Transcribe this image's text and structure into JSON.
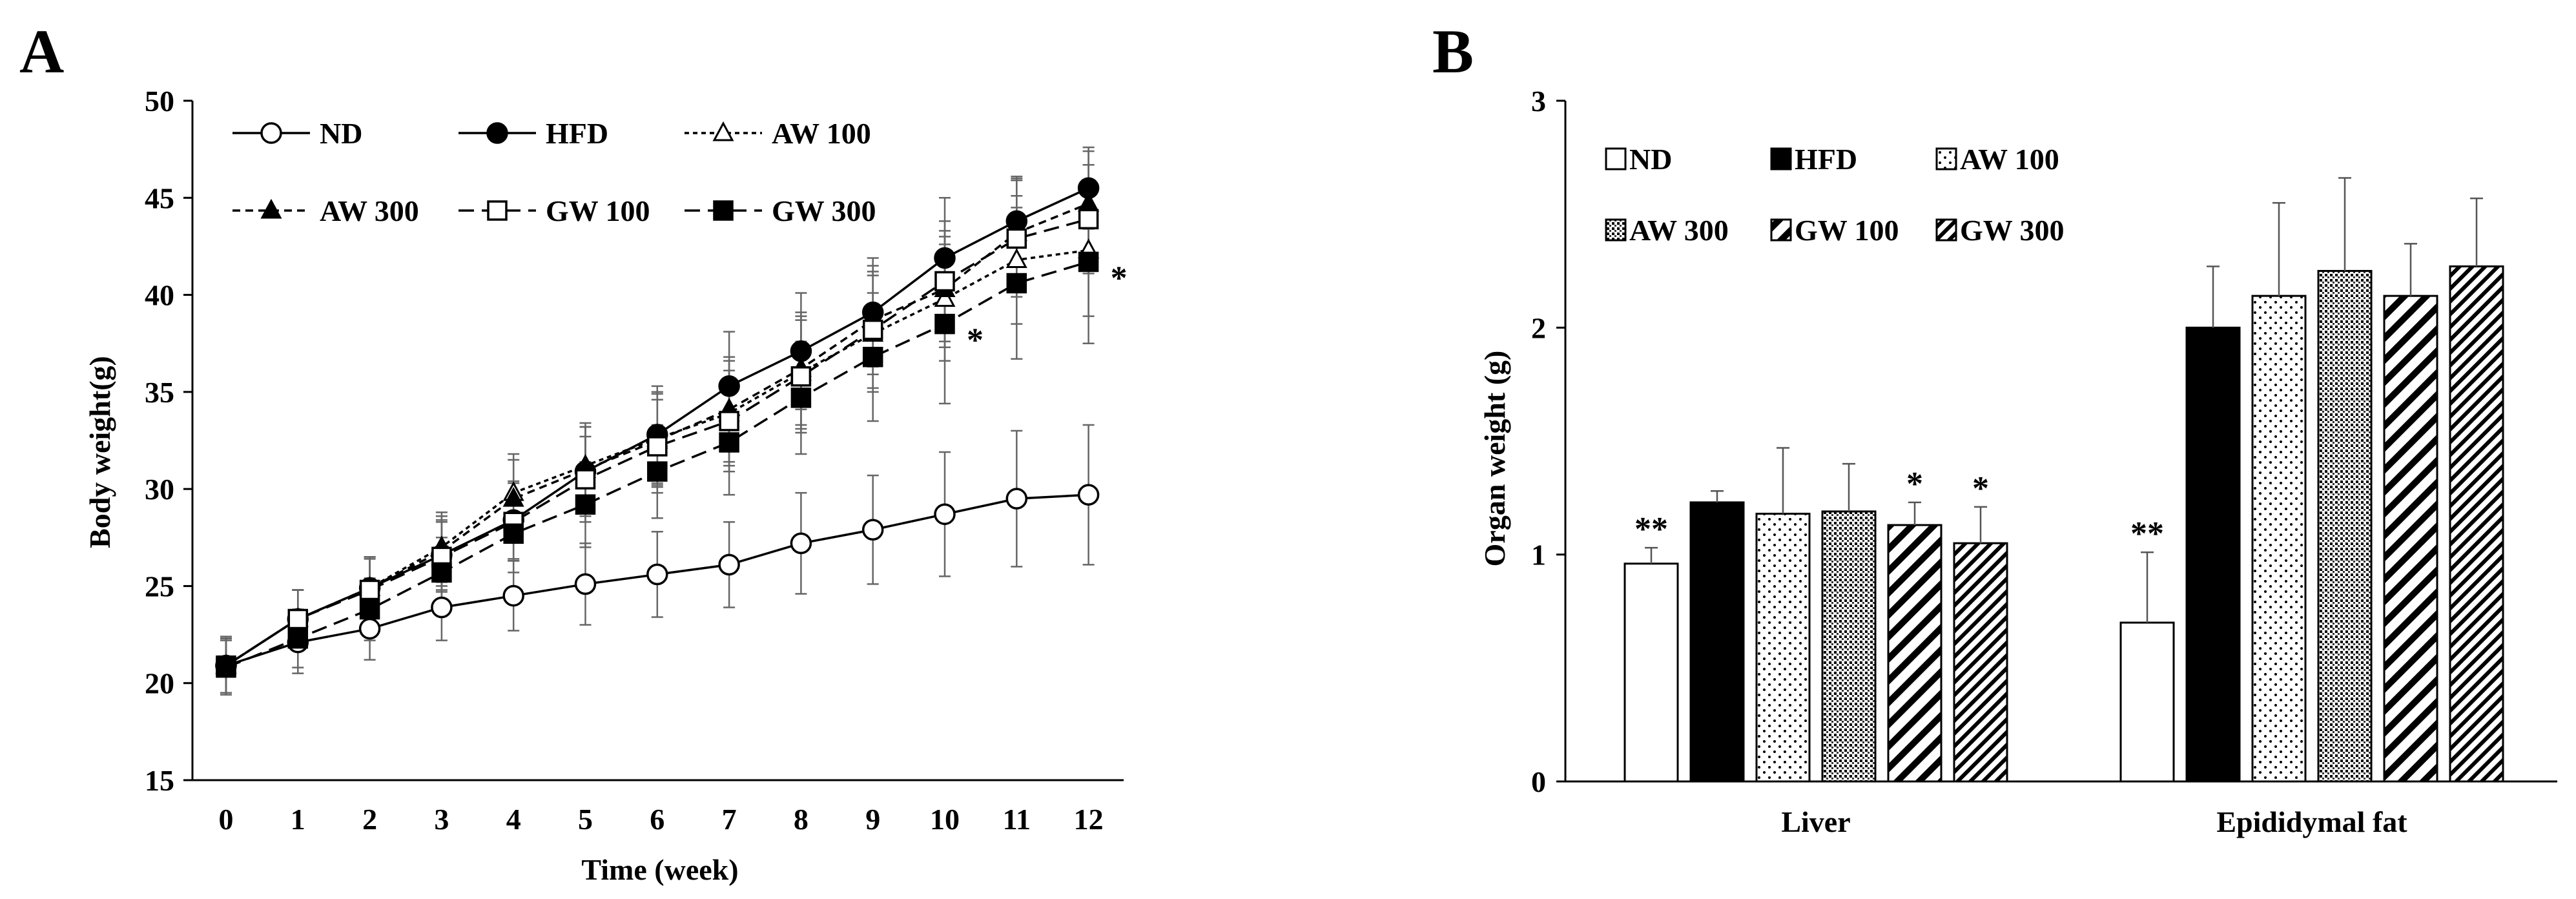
{
  "panel_a": {
    "label": "A"
  },
  "panel_b": {
    "label": "B"
  },
  "chart_data": [
    {
      "type": "line",
      "xlabel": "Time (week)",
      "ylabel": "Body weight(g)",
      "ylim": [
        15,
        50
      ],
      "yticks": [
        15,
        20,
        25,
        30,
        35,
        40,
        45,
        50
      ],
      "x": [
        0,
        1,
        2,
        3,
        4,
        5,
        6,
        7,
        8,
        9,
        10,
        11,
        12
      ],
      "xtick_labels": [
        "0",
        "1",
        "2",
        "3",
        "4",
        "5",
        "6",
        "7",
        "8",
        "9",
        "10",
        "11",
        "12"
      ],
      "legend": [
        "ND",
        "HFD",
        "AW 100",
        "AW 300",
        "GW 100",
        "GW 300"
      ],
      "series": [
        {
          "name": "ND",
          "line": "solid",
          "marker": "circle-open",
          "values": [
            20.9,
            22.1,
            22.8,
            23.9,
            24.5,
            25.1,
            25.6,
            26.1,
            27.2,
            27.9,
            28.7,
            29.5,
            29.7
          ],
          "errors": [
            1.5,
            1.6,
            1.6,
            1.7,
            1.8,
            2.1,
            2.2,
            2.2,
            2.6,
            2.8,
            3.2,
            3.5,
            3.6
          ]
        },
        {
          "name": "HFD",
          "line": "solid",
          "marker": "circle-filled",
          "values": [
            20.9,
            23.3,
            24.9,
            26.6,
            28.4,
            30.9,
            32.8,
            35.3,
            37.1,
            39.1,
            41.9,
            43.8,
            45.5
          ],
          "errors": [
            1.4,
            1.5,
            1.6,
            1.8,
            2.0,
            2.3,
            2.5,
            2.8,
            3.0,
            2.8,
            3.1,
            2.3,
            2.1
          ]
        },
        {
          "name": "AW 100",
          "line": "dotted",
          "marker": "triangle-open",
          "values": [
            20.9,
            23.3,
            24.9,
            27.0,
            29.8,
            31.2,
            32.6,
            33.9,
            36.0,
            38.0,
            39.8,
            41.8,
            42.3
          ],
          "errors": [
            1.4,
            1.5,
            1.6,
            1.8,
            2.0,
            2.2,
            2.4,
            2.7,
            2.9,
            3.0,
            3.2,
            3.3,
            3.4
          ]
        },
        {
          "name": "AW 300",
          "line": "short-dash",
          "marker": "triangle-filled",
          "values": [
            20.9,
            23.3,
            24.9,
            26.8,
            29.5,
            31.0,
            32.5,
            34.1,
            36.2,
            38.7,
            40.3,
            43.2,
            44.7
          ],
          "errors": [
            1.4,
            1.5,
            1.6,
            1.8,
            2.0,
            2.2,
            2.4,
            2.7,
            2.9,
            2.8,
            3.0,
            2.8,
            2.7
          ]
        },
        {
          "name": "GW 100",
          "line": "long-dash",
          "marker": "square-open",
          "values": [
            20.9,
            23.3,
            24.8,
            26.5,
            28.3,
            30.5,
            32.2,
            33.5,
            35.8,
            38.2,
            40.7,
            42.9,
            43.9
          ],
          "errors": [
            1.4,
            1.5,
            1.6,
            1.8,
            2.0,
            2.2,
            2.4,
            2.6,
            2.9,
            3.0,
            3.1,
            3.0,
            2.8
          ]
        },
        {
          "name": "GW 300",
          "line": "long-dash",
          "marker": "square-filled",
          "values": [
            20.8,
            22.3,
            23.8,
            25.7,
            27.7,
            29.2,
            30.9,
            32.4,
            34.7,
            36.8,
            38.5,
            40.6,
            41.7
          ],
          "errors": [
            1.4,
            1.5,
            1.6,
            1.8,
            2.0,
            2.2,
            2.4,
            2.7,
            2.9,
            3.3,
            4.1,
            3.9,
            4.2
          ]
        }
      ],
      "annotations": [
        {
          "text": "*",
          "series": "GW 300",
          "x": 10
        },
        {
          "text": "*",
          "series": "GW 300",
          "x": 12
        }
      ]
    },
    {
      "type": "bar",
      "ylabel": "Organ weight (g)",
      "xlabel": "",
      "ylim": [
        0,
        3
      ],
      "yticks": [
        0,
        1,
        2,
        3
      ],
      "categories": [
        "Liver",
        "Epididymal fat"
      ],
      "legend": [
        "ND",
        "HFD",
        "AW 100",
        "AW 300",
        "GW 100",
        "GW 300"
      ],
      "series": [
        {
          "name": "ND",
          "fill": "white",
          "values": [
            0.96,
            0.7
          ],
          "errors": [
            0.07,
            0.31
          ],
          "annotations": [
            "**",
            "**"
          ]
        },
        {
          "name": "HFD",
          "fill": "black",
          "values": [
            1.23,
            2.0
          ],
          "errors": [
            0.05,
            0.27
          ],
          "annotations": [
            "",
            ""
          ]
        },
        {
          "name": "AW 100",
          "fill": "sparse-dots",
          "values": [
            1.18,
            2.14
          ],
          "errors": [
            0.29,
            0.41
          ],
          "annotations": [
            "",
            ""
          ]
        },
        {
          "name": "AW 300",
          "fill": "dense-dots",
          "values": [
            1.19,
            2.25
          ],
          "errors": [
            0.21,
            0.41
          ],
          "annotations": [
            "",
            ""
          ]
        },
        {
          "name": "GW 100",
          "fill": "wide-diagonal",
          "values": [
            1.13,
            2.14
          ],
          "errors": [
            0.1,
            0.23
          ],
          "annotations": [
            "*",
            ""
          ]
        },
        {
          "name": "GW 300",
          "fill": "narrow-diagonal",
          "values": [
            1.05,
            2.27
          ],
          "errors": [
            0.16,
            0.3
          ],
          "annotations": [
            "*",
            ""
          ]
        }
      ]
    }
  ]
}
